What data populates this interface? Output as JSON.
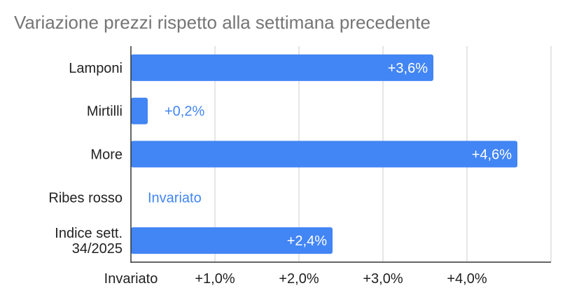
{
  "title": "Variazione prezzi rispetto alla settimana precedente",
  "chart_data": {
    "type": "bar",
    "orientation": "horizontal",
    "title": "Variazione prezzi rispetto alla settimana precedente",
    "categories": [
      "Lamponi",
      "Mirtilli",
      "More",
      "Ribes rosso",
      "Indice sett. 34/2025"
    ],
    "category_lines": [
      [
        "Lamponi"
      ],
      [
        "Mirtilli"
      ],
      [
        "More"
      ],
      [
        "Ribes rosso"
      ],
      [
        "Indice sett.",
        "34/2025"
      ]
    ],
    "values": [
      3.6,
      0.2,
      4.6,
      0.0,
      2.4
    ],
    "data_labels": [
      "+3,6%",
      "+0,2%",
      "+4,6%",
      "Invariato",
      "+2,4%"
    ],
    "xlim": [
      0,
      5
    ],
    "x_ticks": [
      0,
      1,
      2,
      3,
      4,
      5
    ],
    "x_tick_labels": [
      "Invariato",
      "+1,0%",
      "+2,0%",
      "+3,0%",
      "+4,0%",
      ""
    ],
    "xlabel": "",
    "ylabel": "",
    "grid": true,
    "legend": "none",
    "colors": {
      "bar": "#4285f4",
      "label_inside": "#ffffff",
      "label_outside": "#4285f4",
      "grid": "#cccccc",
      "axis": "#333333",
      "text": "#222222",
      "title": "#757575"
    }
  }
}
